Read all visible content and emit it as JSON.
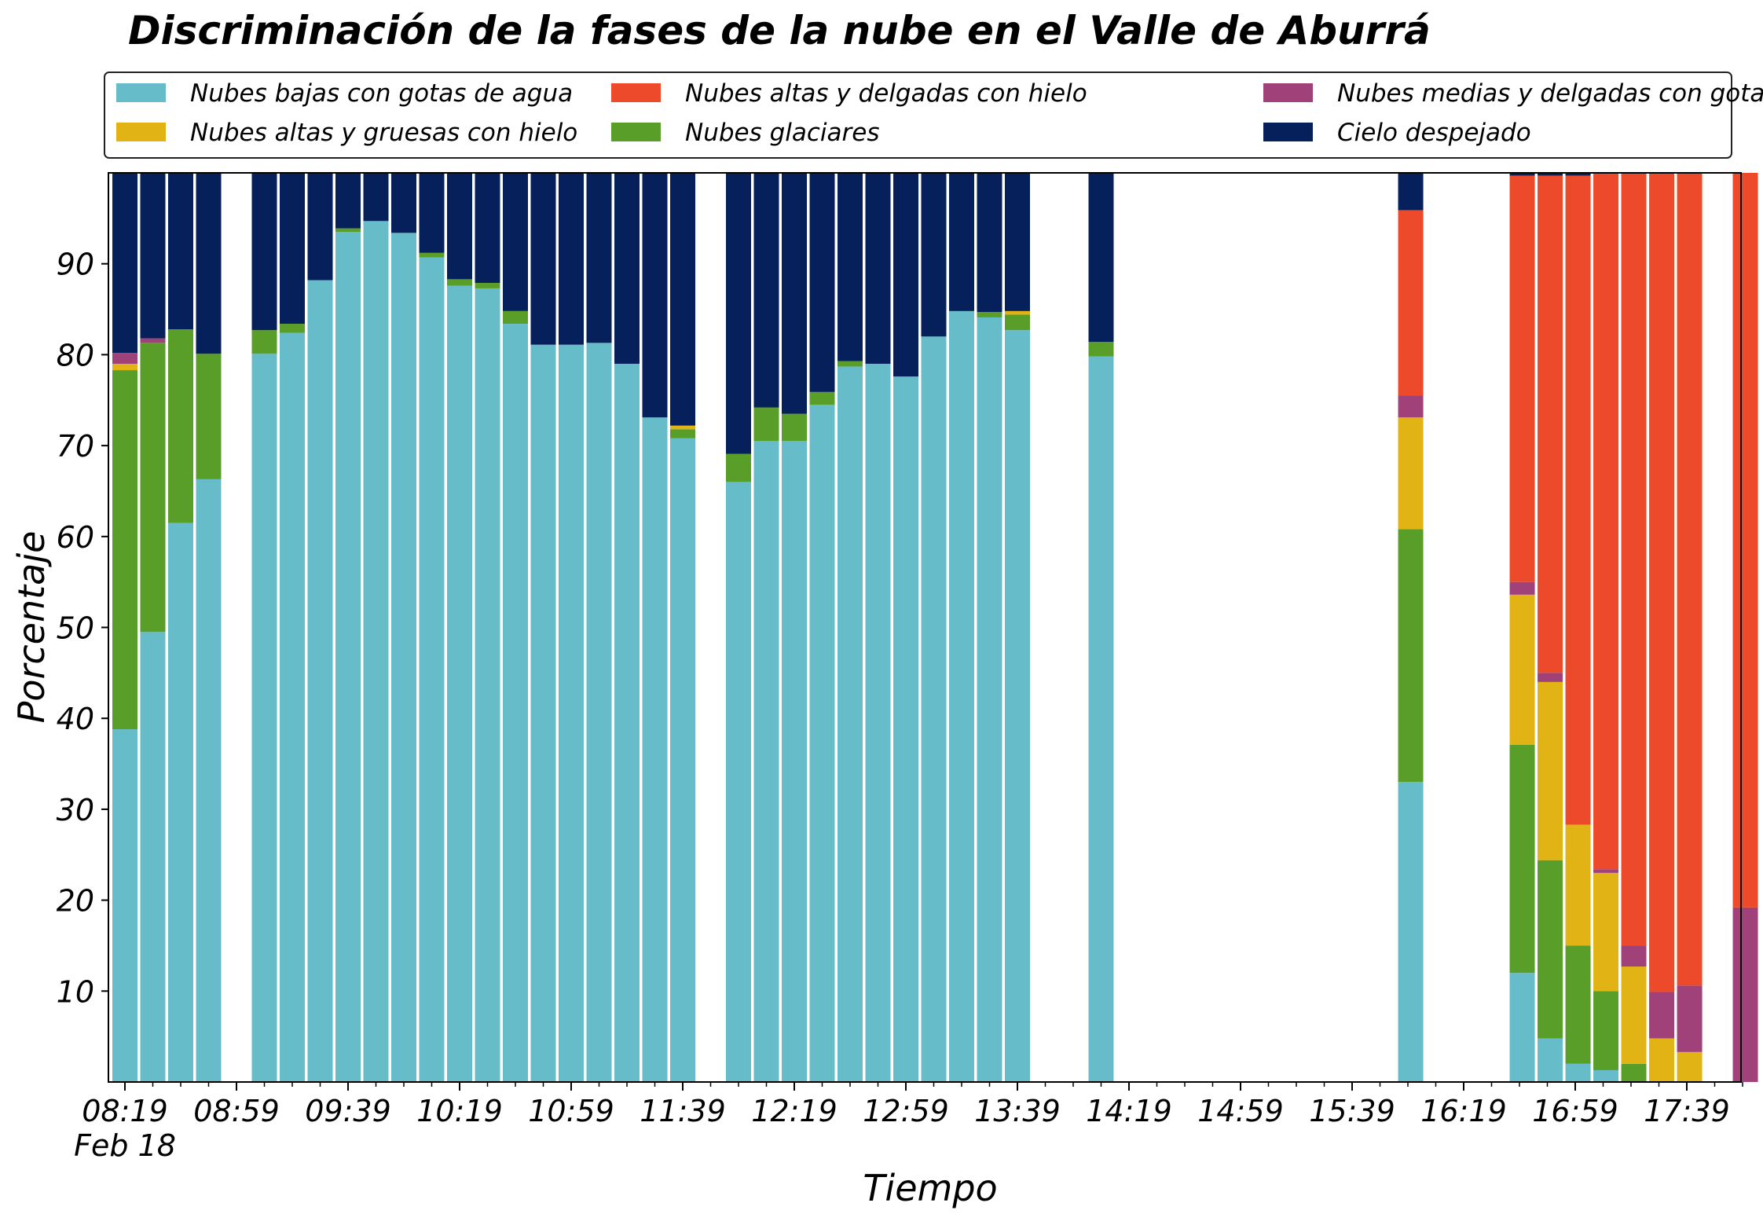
{
  "chart_data": {
    "type": "bar",
    "stacked": true,
    "title": "Discriminación de la fases de la nube en el Valle de Aburrá",
    "xlabel": "Tiempo",
    "ylabel": "Porcentaje",
    "ylim": [
      0,
      100
    ],
    "yticks": [
      10,
      20,
      30,
      40,
      50,
      60,
      70,
      80,
      90
    ],
    "x_start": "08:19",
    "x_end": "17:59",
    "x_step_minutes": 10,
    "x_labels": [
      {
        "time": "08:19",
        "text": "08:19",
        "subtext": "Feb 18"
      },
      {
        "time": "08:59",
        "text": "08:59"
      },
      {
        "time": "09:39",
        "text": "09:39"
      },
      {
        "time": "10:19",
        "text": "10:19"
      },
      {
        "time": "10:59",
        "text": "10:59"
      },
      {
        "time": "11:39",
        "text": "11:39"
      },
      {
        "time": "12:19",
        "text": "12:19"
      },
      {
        "time": "12:59",
        "text": "12:59"
      },
      {
        "time": "13:39",
        "text": "13:39"
      },
      {
        "time": "14:19",
        "text": "14:19"
      },
      {
        "time": "14:59",
        "text": "14:59"
      },
      {
        "time": "15:39",
        "text": "15:39"
      },
      {
        "time": "16:19",
        "text": "16:19"
      },
      {
        "time": "16:59",
        "text": "16:59"
      },
      {
        "time": "17:39",
        "text": "17:39"
      }
    ],
    "legend_position": "top, below title, 3 columns",
    "series": [
      {
        "name": "Nubes bajas con gotas de agua",
        "color": "#66bcc8"
      },
      {
        "name": "Nubes glaciares",
        "color": "#5a9e2a"
      },
      {
        "name": "Nubes altas y gruesas con hielo",
        "color": "#e2b315"
      },
      {
        "name": "Nubes medias y delgadas con gotas de agua",
        "color": "#a0417a"
      },
      {
        "name": "Nubes altas y delgadas con hielo",
        "color": "#ec4a2b"
      },
      {
        "name": "Cielo despejado",
        "color": "#06205c"
      }
    ],
    "legend_order": [
      0,
      2,
      4,
      1,
      3,
      5
    ],
    "bars": [
      {
        "time": "08:19",
        "values": [
          38.8,
          39.5,
          0.7,
          1.2,
          0,
          19.8
        ]
      },
      {
        "time": "08:29",
        "values": [
          49.5,
          31.8,
          0,
          0.5,
          0,
          18.2
        ]
      },
      {
        "time": "08:39",
        "values": [
          61.5,
          21.3,
          0,
          0,
          0,
          17.2
        ]
      },
      {
        "time": "08:49",
        "values": [
          66.3,
          13.8,
          0,
          0,
          0,
          19.9
        ]
      },
      {
        "time": "09:09",
        "values": [
          80.1,
          2.6,
          0,
          0,
          0,
          17.3
        ]
      },
      {
        "time": "09:19",
        "values": [
          82.4,
          1.0,
          0,
          0,
          0,
          16.6
        ]
      },
      {
        "time": "09:29",
        "values": [
          88.2,
          0,
          0,
          0,
          0,
          11.8
        ]
      },
      {
        "time": "09:39",
        "values": [
          93.5,
          0.4,
          0,
          0,
          0,
          6.1
        ]
      },
      {
        "time": "09:49",
        "values": [
          94.7,
          0,
          0,
          0,
          0,
          5.3
        ]
      },
      {
        "time": "09:59",
        "values": [
          93.4,
          0,
          0,
          0,
          0,
          6.6
        ]
      },
      {
        "time": "10:09",
        "values": [
          90.7,
          0.5,
          0,
          0,
          0,
          8.8
        ]
      },
      {
        "time": "10:19",
        "values": [
          87.6,
          0.7,
          0,
          0,
          0,
          11.7
        ]
      },
      {
        "time": "10:29",
        "values": [
          87.3,
          0.6,
          0,
          0,
          0,
          12.1
        ]
      },
      {
        "time": "10:39",
        "values": [
          83.4,
          1.4,
          0,
          0,
          0,
          15.2
        ]
      },
      {
        "time": "10:49",
        "values": [
          81.1,
          0,
          0,
          0,
          0,
          18.9
        ]
      },
      {
        "time": "10:59",
        "values": [
          81.1,
          0,
          0,
          0,
          0,
          18.9
        ]
      },
      {
        "time": "11:09",
        "values": [
          81.3,
          0,
          0,
          0,
          0,
          18.7
        ]
      },
      {
        "time": "11:19",
        "values": [
          79.0,
          0,
          0,
          0,
          0,
          21.0
        ]
      },
      {
        "time": "11:29",
        "values": [
          73.1,
          0,
          0,
          0,
          0,
          26.9
        ]
      },
      {
        "time": "11:39",
        "values": [
          70.8,
          1.0,
          0.4,
          0,
          0,
          27.8
        ]
      },
      {
        "time": "11:59",
        "values": [
          66.0,
          3.1,
          0,
          0,
          0,
          30.9
        ]
      },
      {
        "time": "12:09",
        "values": [
          70.5,
          3.7,
          0,
          0,
          0,
          25.8
        ]
      },
      {
        "time": "12:19",
        "values": [
          70.5,
          3.0,
          0,
          0,
          0,
          26.5
        ]
      },
      {
        "time": "12:29",
        "values": [
          74.5,
          1.4,
          0,
          0,
          0,
          24.1
        ]
      },
      {
        "time": "12:39",
        "values": [
          78.7,
          0.6,
          0,
          0,
          0,
          20.7
        ]
      },
      {
        "time": "12:49",
        "values": [
          79.0,
          0,
          0,
          0,
          0,
          21.0
        ]
      },
      {
        "time": "12:59",
        "values": [
          77.6,
          0,
          0,
          0,
          0,
          22.4
        ]
      },
      {
        "time": "13:09",
        "values": [
          82.0,
          0,
          0,
          0,
          0,
          18.0
        ]
      },
      {
        "time": "13:19",
        "values": [
          84.8,
          0,
          0,
          0,
          0,
          15.2
        ]
      },
      {
        "time": "13:29",
        "values": [
          84.1,
          0.6,
          0,
          0,
          0,
          15.3
        ]
      },
      {
        "time": "13:39",
        "values": [
          82.7,
          1.7,
          0.4,
          0,
          0,
          15.2
        ]
      },
      {
        "time": "14:09",
        "values": [
          79.8,
          1.6,
          0,
          0,
          0,
          18.6
        ]
      },
      {
        "time": "16:00",
        "values": [
          33.0,
          27.8,
          12.3,
          2.4,
          20.4,
          4.1
        ]
      },
      {
        "time": "16:40",
        "values": [
          12.0,
          25.1,
          16.5,
          1.4,
          44.7,
          0.3
        ]
      },
      {
        "time": "16:50",
        "values": [
          4.8,
          19.6,
          19.6,
          1.0,
          54.7,
          0.3
        ]
      },
      {
        "time": "17:00",
        "values": [
          2.0,
          13.0,
          13.3,
          0,
          71.4,
          0.3
        ]
      },
      {
        "time": "17:10",
        "values": [
          1.3,
          8.7,
          13.0,
          0.4,
          76.6,
          0
        ]
      },
      {
        "time": "17:20",
        "values": [
          0,
          2.0,
          10.7,
          2.3,
          85.0,
          0
        ]
      },
      {
        "time": "17:30",
        "values": [
          0,
          0,
          4.8,
          5.1,
          90.1,
          0
        ]
      },
      {
        "time": "17:40",
        "values": [
          0,
          0,
          3.3,
          7.3,
          89.4,
          0
        ]
      },
      {
        "time": "18:00",
        "values": [
          0,
          0,
          0,
          19.2,
          80.8,
          0
        ]
      }
    ]
  }
}
